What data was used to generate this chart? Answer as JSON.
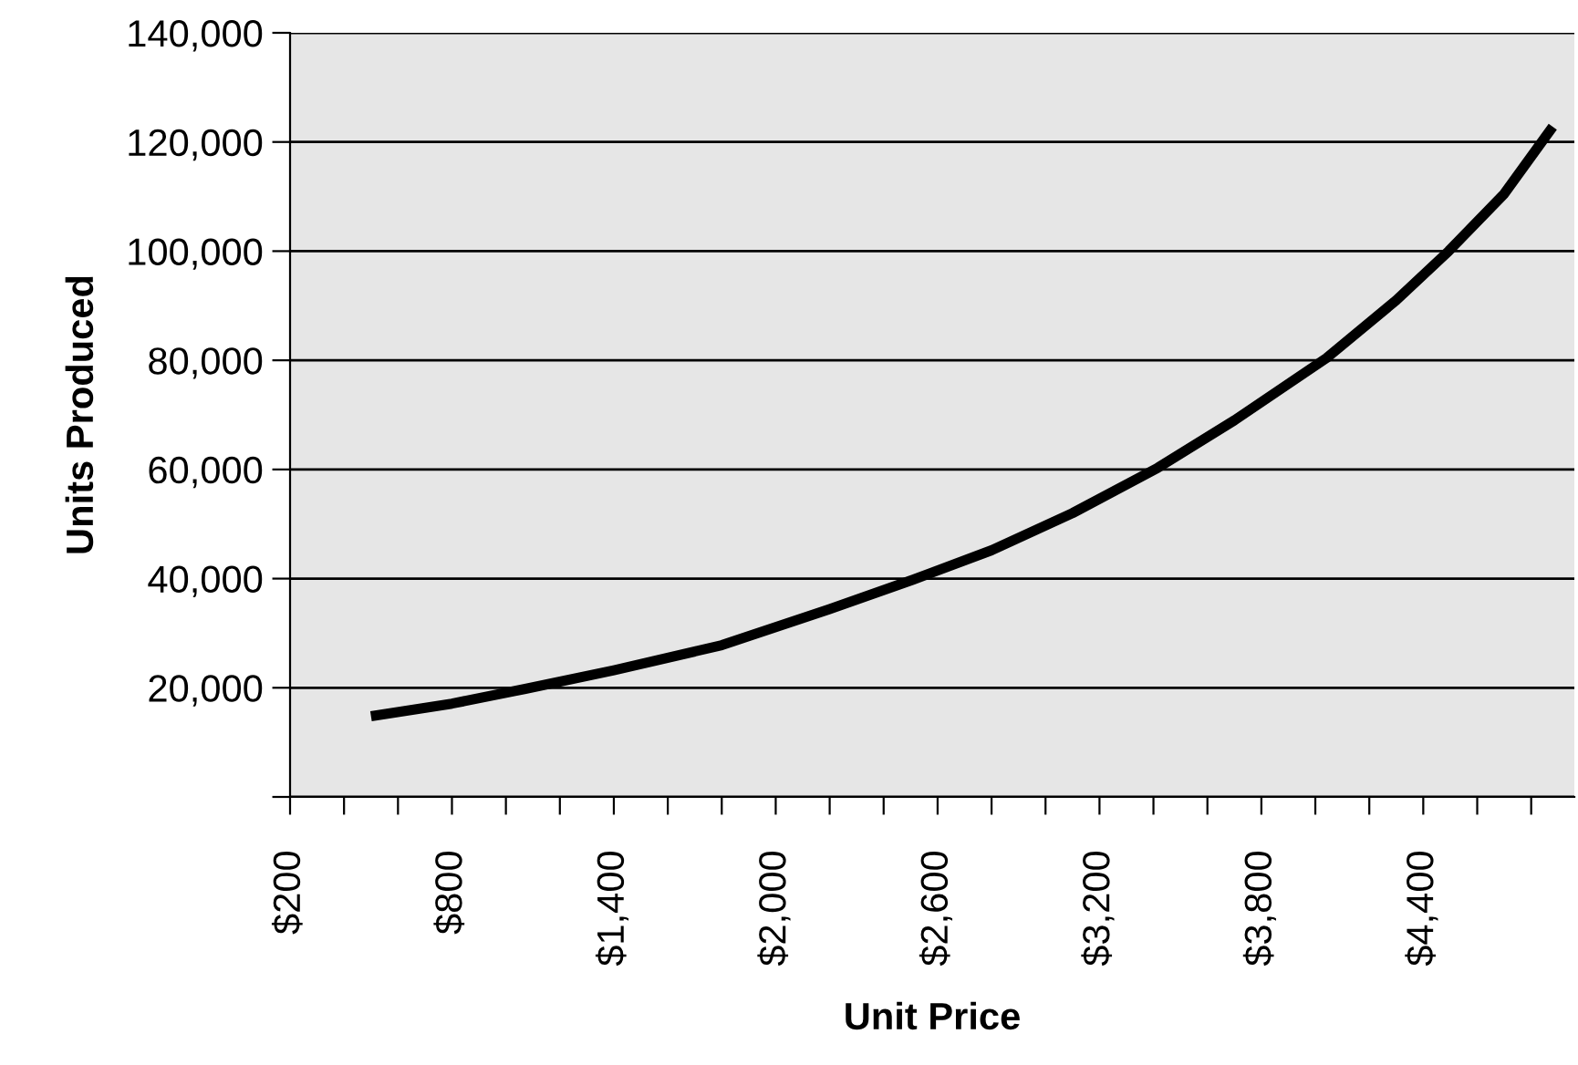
{
  "chart_data": {
    "type": "line",
    "xlabel": "Unit Price",
    "ylabel": "Units Produced",
    "x": [
      500,
      800,
      1072,
      1400,
      1800,
      2200,
      2509,
      2800,
      3100,
      3416,
      3700,
      4041,
      4300,
      4494,
      4700,
      4880
    ],
    "series": [
      {
        "color": "#000000",
        "values": [
          14800,
          17100,
          19800,
          23200,
          27800,
          34400,
          39800,
          45200,
          52000,
          60300,
          69000,
          80400,
          91000,
          100000,
          110500,
          122800
        ]
      }
    ],
    "xlim": [
      200,
      4960
    ],
    "xticks": [
      {
        "value": 200,
        "label": "$200"
      },
      {
        "value": 400,
        "label": null
      },
      {
        "value": 600,
        "label": null
      },
      {
        "value": 800,
        "label": "$800"
      },
      {
        "value": 1000,
        "label": null
      },
      {
        "value": 1200,
        "label": null
      },
      {
        "value": 1400,
        "label": "$1,400"
      },
      {
        "value": 1600,
        "label": null
      },
      {
        "value": 1800,
        "label": null
      },
      {
        "value": 2000,
        "label": "$2,000"
      },
      {
        "value": 2200,
        "label": null
      },
      {
        "value": 2400,
        "label": null
      },
      {
        "value": 2600,
        "label": "$2,600"
      },
      {
        "value": 2800,
        "label": null
      },
      {
        "value": 3000,
        "label": null
      },
      {
        "value": 3200,
        "label": "$3,200"
      },
      {
        "value": 3400,
        "label": null
      },
      {
        "value": 3600,
        "label": null
      },
      {
        "value": 3800,
        "label": "$3,800"
      },
      {
        "value": 4000,
        "label": null
      },
      {
        "value": 4200,
        "label": null
      },
      {
        "value": 4400,
        "label": "$4,400"
      },
      {
        "value": 4600,
        "label": null
      },
      {
        "value": 4800,
        "label": null
      }
    ],
    "ylim": [
      0,
      140000
    ],
    "yticks": [
      {
        "value": 0,
        "label": null
      },
      {
        "value": 20000,
        "label": "20,000"
      },
      {
        "value": 40000,
        "label": "40,000"
      },
      {
        "value": 60000,
        "label": "60,000"
      },
      {
        "value": 80000,
        "label": "80,000"
      },
      {
        "value": 100000,
        "label": "100,000"
      },
      {
        "value": 120000,
        "label": "120,000"
      },
      {
        "value": 140000,
        "label": "140,000"
      }
    ],
    "grid": "y",
    "marker": "none",
    "line_style": "solid"
  }
}
